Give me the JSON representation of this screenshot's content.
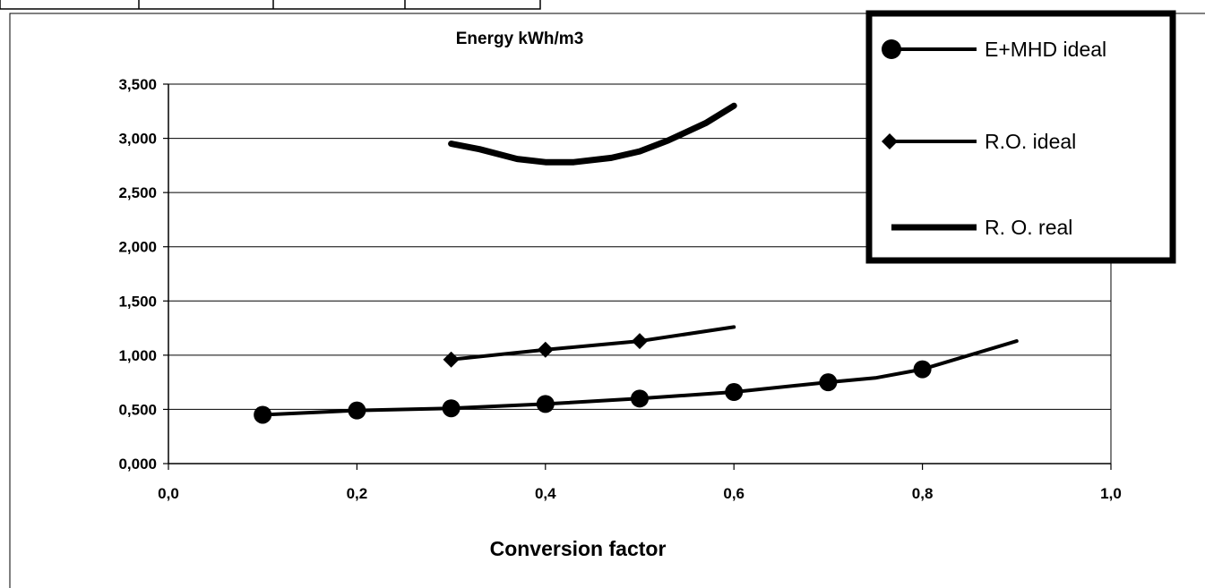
{
  "chart_data": {
    "type": "line",
    "title": "Energy kWh/m3",
    "xlabel": "Conversion factor",
    "ylabel": "",
    "xlim": [
      0.0,
      1.0
    ],
    "ylim": [
      0.0,
      3.5
    ],
    "x_ticks": [
      "0,0",
      "0,2",
      "0,4",
      "0,6",
      "0,8",
      "1,0"
    ],
    "y_ticks": [
      "0,000",
      "0,500",
      "1,000",
      "1,500",
      "2,000",
      "2,500",
      "3,000",
      "3,500"
    ],
    "grid": "horizontal",
    "legend_position": "top-right",
    "series": [
      {
        "name": "E+MHD ideal",
        "marker": "circle",
        "line_style": "medium",
        "points": [
          [
            0.1,
            0.45
          ],
          [
            0.2,
            0.49
          ],
          [
            0.3,
            0.51
          ],
          [
            0.4,
            0.55
          ],
          [
            0.5,
            0.6
          ],
          [
            0.6,
            0.66
          ],
          [
            0.7,
            0.75
          ],
          [
            0.75,
            0.79
          ],
          [
            0.8,
            0.87
          ],
          [
            0.9,
            1.13
          ]
        ],
        "marked": [
          true,
          true,
          true,
          true,
          true,
          true,
          true,
          false,
          true,
          false
        ]
      },
      {
        "name": "R.O. ideal",
        "marker": "diamond",
        "line_style": "medium",
        "points": [
          [
            0.3,
            0.96
          ],
          [
            0.4,
            1.05
          ],
          [
            0.5,
            1.13
          ],
          [
            0.6,
            1.26
          ]
        ],
        "marked": [
          true,
          true,
          true,
          false
        ]
      },
      {
        "name": "R. O. real",
        "marker": "none",
        "line_style": "thick",
        "points": [
          [
            0.3,
            2.95
          ],
          [
            0.33,
            2.9
          ],
          [
            0.37,
            2.81
          ],
          [
            0.4,
            2.78
          ],
          [
            0.43,
            2.78
          ],
          [
            0.47,
            2.82
          ],
          [
            0.5,
            2.88
          ],
          [
            0.53,
            2.98
          ],
          [
            0.57,
            3.14
          ],
          [
            0.6,
            3.3
          ]
        ]
      }
    ]
  }
}
